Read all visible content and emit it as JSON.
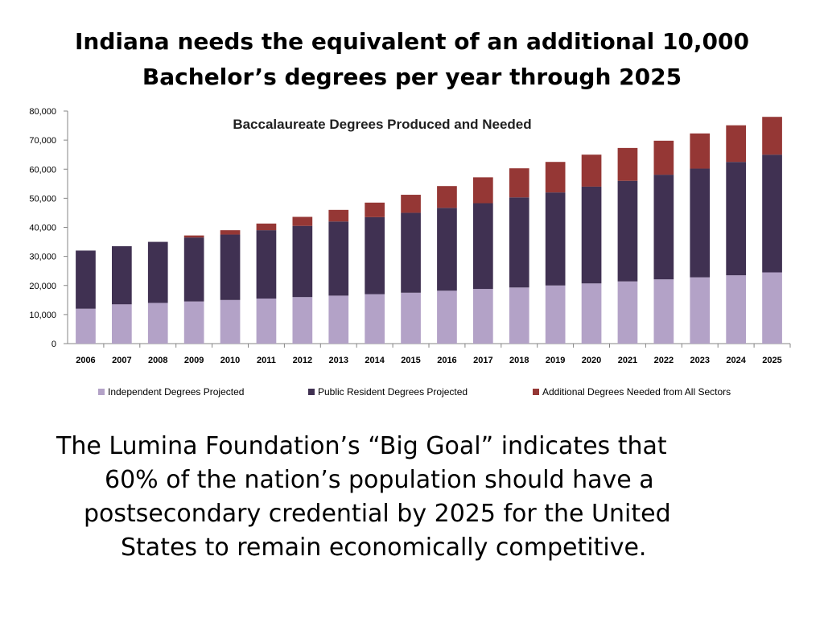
{
  "slide": {
    "title_line1": "Indiana needs the equivalent of an additional 10,000",
    "title_line2": "Bachelor’s degrees per year through 2025",
    "body_line1": "The Lumina Foundation’s “Big Goal” indicates that",
    "body_line2": "60% of the nation’s population should have a",
    "body_line3": "postsecondary credential by 2025 for the United",
    "body_line4": "States to remain economically competitive."
  },
  "chart_data": {
    "type": "bar",
    "stacked": true,
    "title": "Baccalaureate Degrees Produced and Needed",
    "xlabel": "",
    "ylabel": "",
    "ylim": [
      0,
      80000
    ],
    "yticks": [
      "0",
      "10,000",
      "20,000",
      "30,000",
      "40,000",
      "50,000",
      "60,000",
      "70,000",
      "80,000"
    ],
    "grid": false,
    "legend_position": "bottom",
    "categories": [
      "2006",
      "2007",
      "2008",
      "2009",
      "2010",
      "2011",
      "2012",
      "2013",
      "2014",
      "2015",
      "2016",
      "2017",
      "2018",
      "2019",
      "2020",
      "2021",
      "2022",
      "2023",
      "2024",
      "2025"
    ],
    "series": [
      {
        "name": "Independent Degrees Projected",
        "color": "#b3a2c7",
        "values": [
          12000,
          13500,
          14000,
          14500,
          15000,
          15500,
          16000,
          16500,
          17000,
          17500,
          18200,
          18800,
          19300,
          20000,
          20700,
          21400,
          22100,
          22800,
          23500,
          24500
        ]
      },
      {
        "name": "Public Resident Degrees Projected",
        "color": "#403152",
        "values": [
          20000,
          20000,
          21000,
          22000,
          22500,
          23500,
          24500,
          25500,
          26500,
          27500,
          28500,
          29500,
          31000,
          32000,
          33300,
          34600,
          36000,
          37400,
          39000,
          40500
        ]
      },
      {
        "name": "Additional Degrees Needed from All Sectors",
        "color": "#953735",
        "values": [
          0,
          0,
          0,
          700,
          1500,
          2300,
          3100,
          4000,
          5000,
          6200,
          7500,
          8900,
          10000,
          10500,
          11000,
          11300,
          11700,
          12100,
          12600,
          13000
        ]
      }
    ]
  }
}
